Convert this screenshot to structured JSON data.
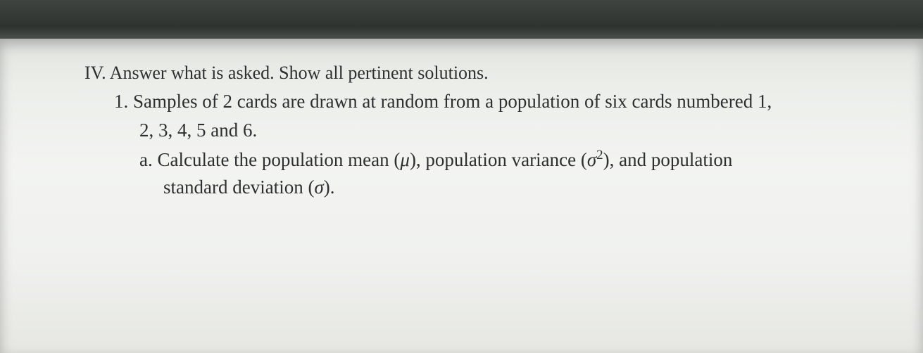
{
  "document": {
    "section_label": "IV.",
    "section_title": "Answer what is asked. Show all pertinent solutions.",
    "item_number": "1.",
    "item_text_line1": "Samples of 2 cards are drawn at random from a population of six cards numbered 1,",
    "item_text_line2": "2, 3, 4, 5 and 6.",
    "sub_label": "a.",
    "sub_text_part1": "Calculate  the  population  mean  (",
    "mu": "μ",
    "sub_text_part2": "),  population  variance  (",
    "sigma_sq": "σ",
    "exponent": "2",
    "sub_text_part3": "),  and  population",
    "sub_text_line2_part1": "standard deviation (",
    "sigma": "σ",
    "sub_text_line2_part2": ")."
  },
  "style": {
    "text_color": "#2d2f30",
    "paper_bg": "#f0f1ee",
    "dark_band": "#3a403a",
    "font_family": "Georgia, Times New Roman, serif",
    "base_fontsize_pt": 20
  }
}
